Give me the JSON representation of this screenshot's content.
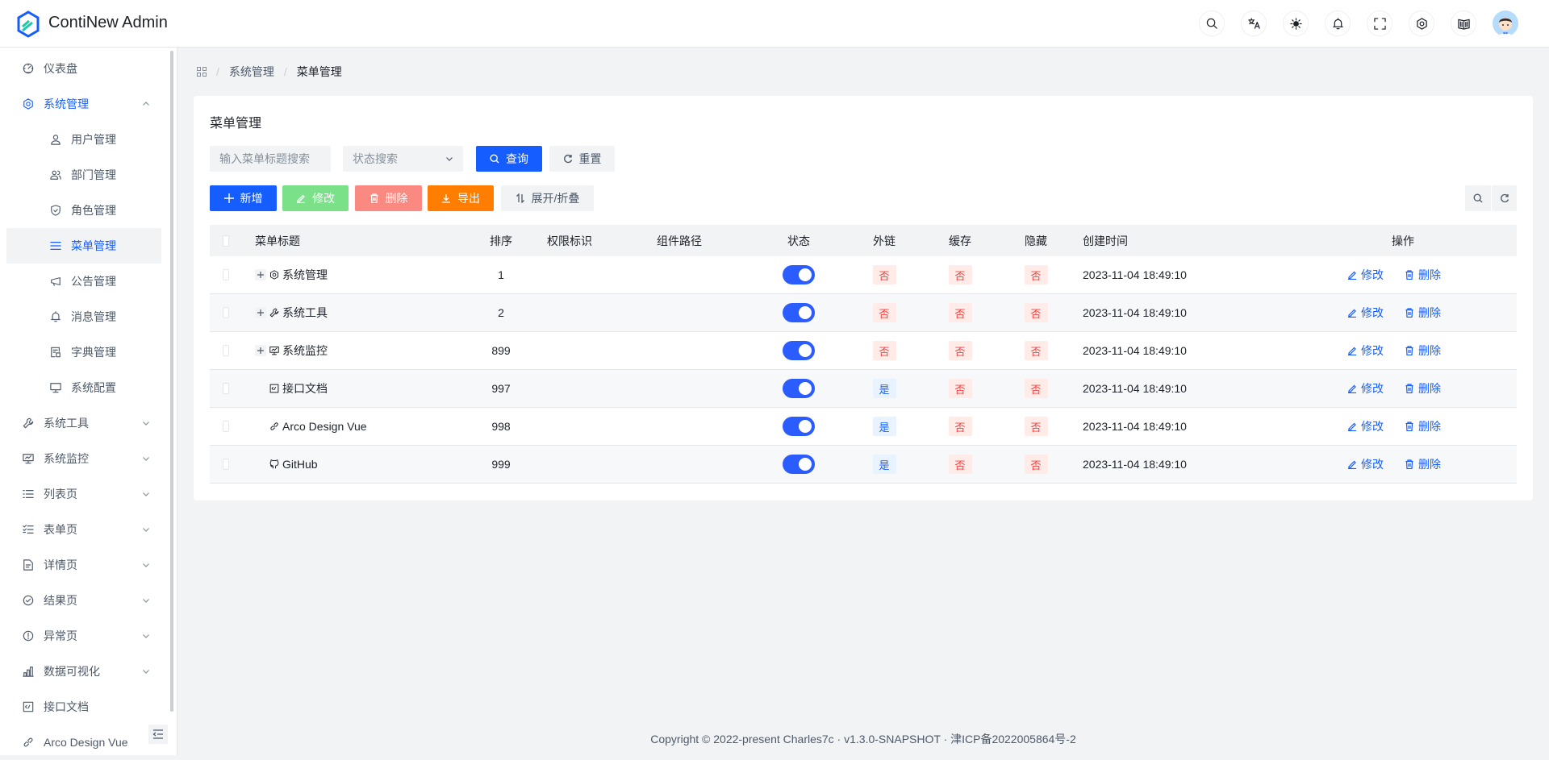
{
  "app": {
    "title": "ContiNew Admin"
  },
  "header_icons": [
    "search-icon",
    "translate-icon",
    "theme-sun-icon",
    "bell-icon",
    "fullscreen-icon",
    "settings-icon",
    "docs-book-icon"
  ],
  "sidebar": {
    "items": [
      {
        "label": "仪表盘",
        "icon": "dashboard-icon",
        "level": 0
      },
      {
        "label": "系统管理",
        "icon": "settings-icon",
        "level": 0,
        "open": true,
        "chevron": "up"
      },
      {
        "label": "用户管理",
        "icon": "user-icon",
        "level": 1
      },
      {
        "label": "部门管理",
        "icon": "user-group-icon",
        "level": 1
      },
      {
        "label": "角色管理",
        "icon": "shield-icon",
        "level": 1
      },
      {
        "label": "菜单管理",
        "icon": "menu-icon",
        "level": 1,
        "active": true
      },
      {
        "label": "公告管理",
        "icon": "megaphone-icon",
        "level": 1
      },
      {
        "label": "消息管理",
        "icon": "bell-icon",
        "level": 1
      },
      {
        "label": "字典管理",
        "icon": "dictionary-icon",
        "level": 1
      },
      {
        "label": "系统配置",
        "icon": "desktop-icon",
        "level": 1
      },
      {
        "label": "系统工具",
        "icon": "wrench-icon",
        "level": 0,
        "chevron": "down"
      },
      {
        "label": "系统监控",
        "icon": "monitor-icon",
        "level": 0,
        "chevron": "down"
      },
      {
        "label": "列表页",
        "icon": "list-icon",
        "level": 0,
        "chevron": "down"
      },
      {
        "label": "表单页",
        "icon": "checklist-icon",
        "level": 0,
        "chevron": "down"
      },
      {
        "label": "详情页",
        "icon": "file-icon",
        "level": 0,
        "chevron": "down"
      },
      {
        "label": "结果页",
        "icon": "check-circle-icon",
        "level": 0,
        "chevron": "down"
      },
      {
        "label": "异常页",
        "icon": "exclamation-circle-icon",
        "level": 0,
        "chevron": "down"
      },
      {
        "label": "数据可视化",
        "icon": "bar-chart-icon",
        "level": 0,
        "chevron": "down"
      },
      {
        "label": "接口文档",
        "icon": "code-doc-icon",
        "level": 0
      },
      {
        "label": "Arco Design Vue",
        "icon": "link-icon",
        "level": 0
      }
    ]
  },
  "breadcrumb": [
    "系统管理",
    "菜单管理"
  ],
  "card": {
    "title": "菜单管理",
    "search_placeholder": "输入菜单标题搜索",
    "status_placeholder": "状态搜索",
    "query_label": "查询",
    "reset_label": "重置",
    "toolbar": {
      "add": "新增",
      "edit": "修改",
      "delete": "删除",
      "export": "导出",
      "expand": "展开/折叠"
    }
  },
  "colors": {
    "primary": "#165dff",
    "success_disabled": "#7be188",
    "danger_disabled": "#f98981",
    "warning": "#ff7d00"
  },
  "table": {
    "columns": [
      "菜单标题",
      "排序",
      "权限标识",
      "组件路径",
      "状态",
      "外链",
      "缓存",
      "隐藏",
      "创建时间",
      "操作"
    ],
    "rows": [
      {
        "title": "系统管理",
        "icon": "settings-icon",
        "expandable": true,
        "sort": "1",
        "perm": "",
        "path": "",
        "status": true,
        "external": "否",
        "cache": "否",
        "hidden": "否",
        "created": "2023-11-04 18:49:10"
      },
      {
        "title": "系统工具",
        "icon": "wrench-icon",
        "expandable": true,
        "sort": "2",
        "perm": "",
        "path": "",
        "status": true,
        "external": "否",
        "cache": "否",
        "hidden": "否",
        "created": "2023-11-04 18:49:10"
      },
      {
        "title": "系统监控",
        "icon": "monitor-icon",
        "expandable": true,
        "sort": "899",
        "perm": "",
        "path": "",
        "status": true,
        "external": "否",
        "cache": "否",
        "hidden": "否",
        "created": "2023-11-04 18:49:10"
      },
      {
        "title": "接口文档",
        "icon": "code-doc-icon",
        "expandable": false,
        "sort": "997",
        "perm": "",
        "path": "",
        "status": true,
        "external": "是",
        "cache": "否",
        "hidden": "否",
        "created": "2023-11-04 18:49:10"
      },
      {
        "title": "Arco Design Vue",
        "icon": "link-icon",
        "expandable": false,
        "sort": "998",
        "perm": "",
        "path": "",
        "status": true,
        "external": "是",
        "cache": "否",
        "hidden": "否",
        "created": "2023-11-04 18:49:10"
      },
      {
        "title": "GitHub",
        "icon": "github-icon",
        "expandable": false,
        "sort": "999",
        "perm": "",
        "path": "",
        "status": true,
        "external": "是",
        "cache": "否",
        "hidden": "否",
        "created": "2023-11-04 18:49:10"
      }
    ],
    "actions": {
      "edit": "修改",
      "delete": "删除"
    }
  },
  "footer": "Copyright © 2022-present Charles7c · v1.3.0-SNAPSHOT · 津ICP备2022005864号-2"
}
